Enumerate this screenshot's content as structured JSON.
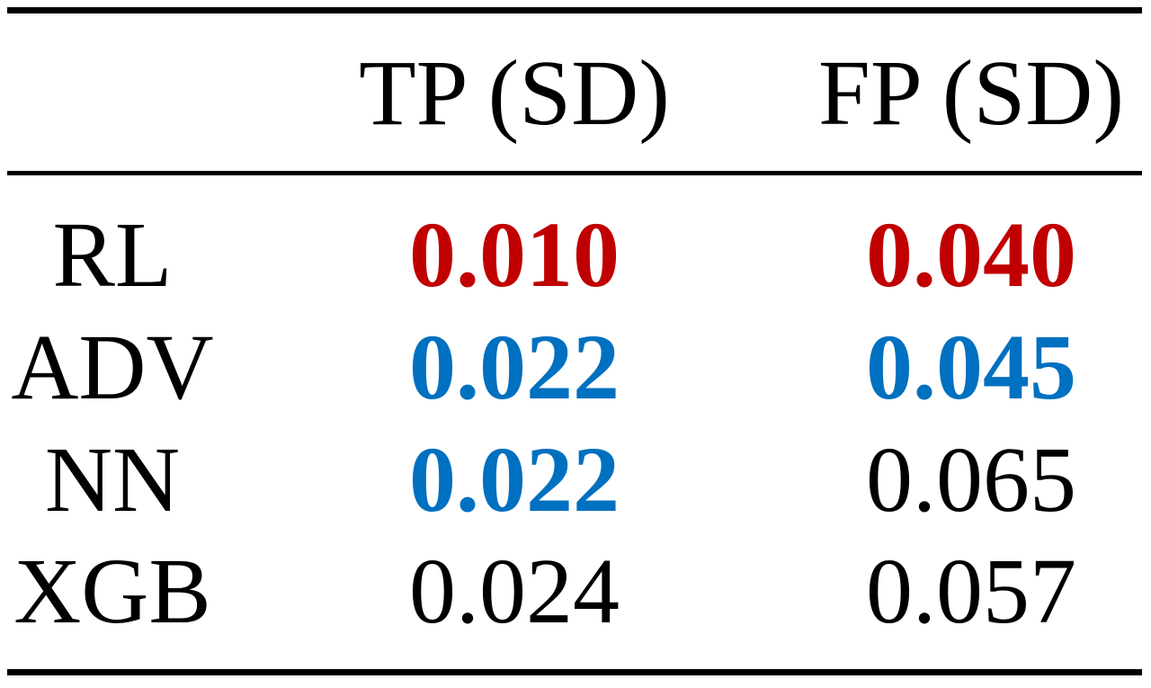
{
  "table": {
    "headers": [
      "",
      "TP (SD)",
      "FP (SD)"
    ],
    "rows": [
      {
        "label": "RL",
        "tp": "0.010",
        "fp": "0.040",
        "tp_style": "best",
        "fp_style": "best"
      },
      {
        "label": "ADV",
        "tp": "0.022",
        "fp": "0.045",
        "tp_style": "second",
        "fp_style": "second"
      },
      {
        "label": "NN",
        "tp": "0.022",
        "fp": "0.065",
        "tp_style": "second",
        "fp_style": "plain"
      },
      {
        "label": "XGB",
        "tp": "0.024",
        "fp": "0.057",
        "tp_style": "plain",
        "fp_style": "plain"
      }
    ]
  },
  "colors": {
    "best": "#c00000",
    "second": "#0070c0",
    "plain": "#000000",
    "rule": "#000000"
  }
}
